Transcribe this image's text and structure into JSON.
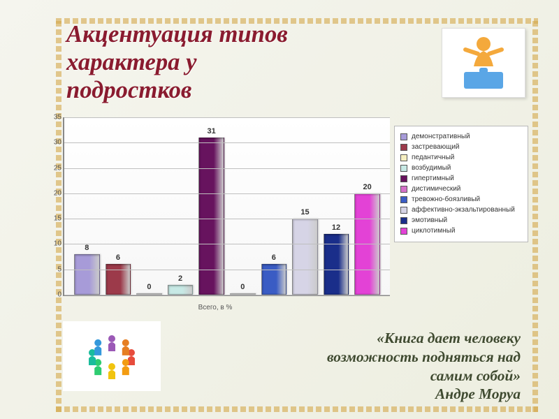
{
  "title": {
    "text": "Акцентуация типов\nхарактера у\nподростков",
    "color": "#8a1b2f",
    "font_size_pt": 26
  },
  "chart": {
    "type": "bar",
    "x_axis_label": "Всего, в %",
    "ylim": [
      0,
      35
    ],
    "ytick_step": 5,
    "grid_color": "#bfbfbf",
    "background_color": "#ffffff",
    "label_fontsize_pt": 10,
    "value_fontsize_pt": 11,
    "bars": [
      {
        "label": "демонстративный",
        "value": 8,
        "color": "#a79bd8"
      },
      {
        "label": "застревающий",
        "value": 6,
        "color": "#9c3a4a"
      },
      {
        "label": "педантичный",
        "value": 0,
        "color": "#f6efc1"
      },
      {
        "label": "возбудимый",
        "value": 2,
        "color": "#c7e9e5"
      },
      {
        "label": "гипертимный",
        "value": 31,
        "color": "#67135e"
      },
      {
        "label": "дистимический",
        "value": 0,
        "color": "#d471c9"
      },
      {
        "label": "тревожно-боязливый",
        "value": 6,
        "color": "#3a5cc4"
      },
      {
        "label": "аффективно-экзальтированный",
        "value": 15,
        "color": "#d6d4e6"
      },
      {
        "label": "эмотивный",
        "value": 12,
        "color": "#1a2e8a"
      },
      {
        "label": "циклотимный",
        "value": 20,
        "color": "#e342d6"
      }
    ]
  },
  "quote": {
    "text": "«Книга дает человеку\nвозможность подняться над\nсамим собой»",
    "author": "Андре Моруа",
    "color": "#3f4a30",
    "font_size_pt": 16
  },
  "images": {
    "top_right_alt": "orange-figure-on-puzzle",
    "bottom_left_alt": "colorful-people-circle"
  }
}
